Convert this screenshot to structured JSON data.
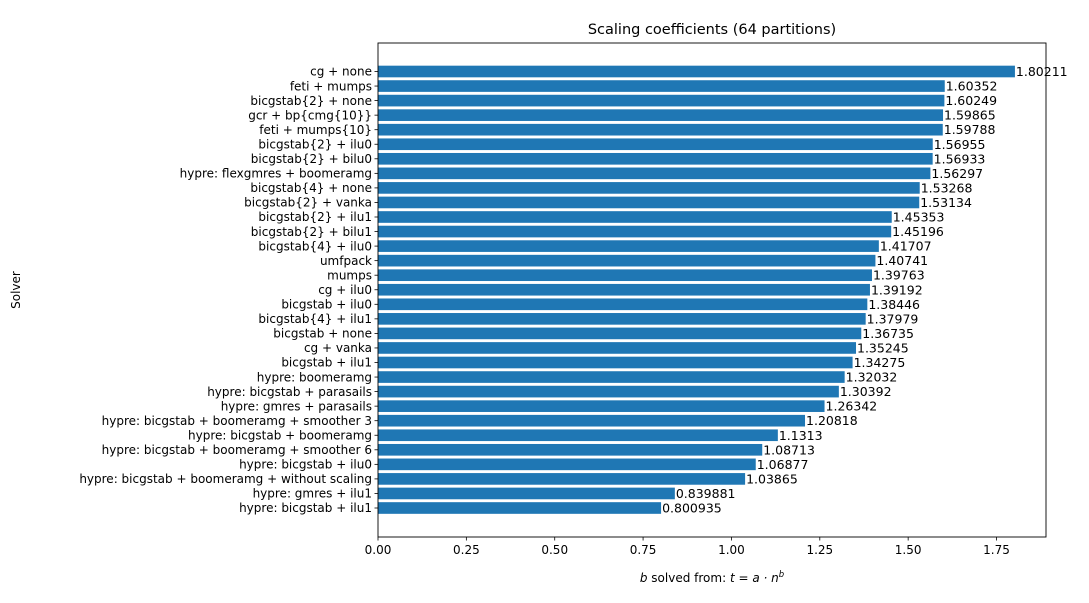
{
  "chart_data": {
    "type": "bar",
    "orientation": "horizontal",
    "title": "Scaling coefficients (64 partitions)",
    "xlabel_prefix": "b",
    "xlabel_middle": " solved from: ",
    "xlabel_formula": "t = a · n",
    "xlabel_superscript": "b",
    "ylabel": "Solver",
    "xlim": [
      0,
      1.89
    ],
    "xticks": [
      0.0,
      0.25,
      0.5,
      0.75,
      1.0,
      1.25,
      1.5,
      1.75
    ],
    "xtick_labels": [
      "0.00",
      "0.25",
      "0.50",
      "0.75",
      "1.00",
      "1.25",
      "1.50",
      "1.75"
    ],
    "bar_color": "#1f77b4",
    "grid": false,
    "categories": [
      "cg + none",
      "feti + mumps",
      "bicgstab{2} + none",
      "gcr + bp{cmg{10}}",
      "feti + mumps{10}",
      "bicgstab{2} + ilu0",
      "bicgstab{2} + bilu0",
      "hypre: flexgmres + boomeramg",
      "bicgstab{4} + none",
      "bicgstab{2} + vanka",
      "bicgstab{2} + ilu1",
      "bicgstab{2} + bilu1",
      "bicgstab{4} + ilu0",
      "umfpack",
      "mumps",
      "cg + ilu0",
      "bicgstab + ilu0",
      "bicgstab{4} + ilu1",
      "bicgstab + none",
      "cg + vanka",
      "bicgstab + ilu1",
      "hypre: boomeramg",
      "hypre: bicgstab + parasails",
      "hypre: gmres + parasails",
      "hypre: bicgstab + boomeramg + smoother 3",
      "hypre: bicgstab + boomeramg",
      "hypre: bicgstab + boomeramg + smoother 6",
      "hypre: bicgstab + ilu0",
      "hypre: bicgstab + boomeramg + without scaling",
      "hypre: gmres + ilu1",
      "hypre: bicgstab + ilu1"
    ],
    "values": [
      1.80211,
      1.60352,
      1.60249,
      1.59865,
      1.59788,
      1.56955,
      1.56933,
      1.56297,
      1.53268,
      1.53134,
      1.45353,
      1.45196,
      1.41707,
      1.40741,
      1.39763,
      1.39192,
      1.38446,
      1.37979,
      1.36735,
      1.35245,
      1.34275,
      1.32032,
      1.30392,
      1.26342,
      1.20818,
      1.1313,
      1.08713,
      1.06877,
      1.03865,
      0.839881,
      0.800935
    ],
    "value_labels": [
      "1.80211",
      "1.60352",
      "1.60249",
      "1.59865",
      "1.59788",
      "1.56955",
      "1.56933",
      "1.56297",
      "1.53268",
      "1.53134",
      "1.45353",
      "1.45196",
      "1.41707",
      "1.40741",
      "1.39763",
      "1.39192",
      "1.38446",
      "1.37979",
      "1.36735",
      "1.35245",
      "1.34275",
      "1.32032",
      "1.30392",
      "1.26342",
      "1.20818",
      "1.1313",
      "1.08713",
      "1.06877",
      "1.03865",
      "0.839881",
      "0.800935"
    ]
  }
}
